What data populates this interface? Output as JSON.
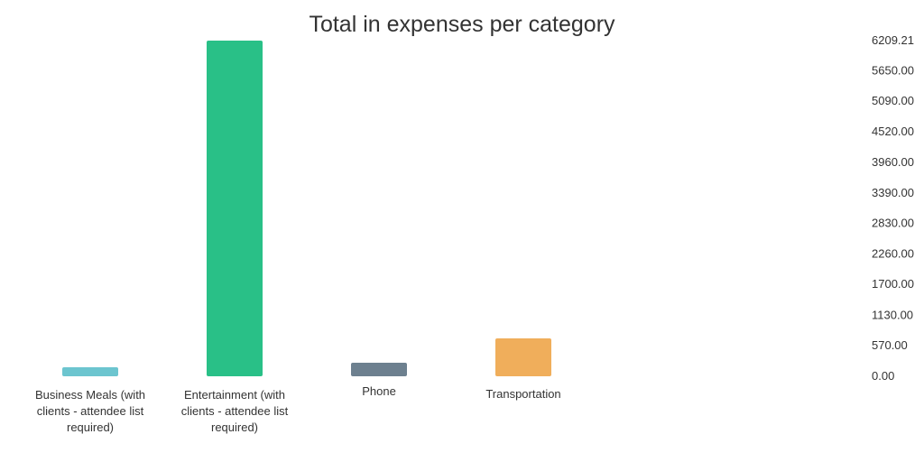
{
  "chart_data": {
    "type": "bar",
    "title": "Total in expenses per category",
    "categories": [
      "Business Meals (with clients - attendee list required)",
      "Entertainment (with clients - attendee list required)",
      "Phone",
      "Transportation"
    ],
    "category_label_lines": [
      [
        "Business Meals (with",
        "clients - attendee list",
        "required)"
      ],
      [
        "Entertainment (with",
        "clients - attendee list",
        "required)"
      ],
      [
        "Phone"
      ],
      [
        "Transportation"
      ]
    ],
    "values": [
      150,
      6209.21,
      250,
      700
    ],
    "colors": [
      "#6cc5cf",
      "#29c087",
      "#6d808f",
      "#f0ae5b"
    ],
    "yticks": [
      "0.00",
      "570.00",
      "1130.00",
      "1700.00",
      "2260.00",
      "2830.00",
      "3390.00",
      "3960.00",
      "4520.00",
      "5090.00",
      "5650.00",
      "6209.21"
    ],
    "ylim": [
      0,
      6209.21
    ],
    "y_axis_position": "right",
    "grid": false,
    "legend": "none"
  }
}
